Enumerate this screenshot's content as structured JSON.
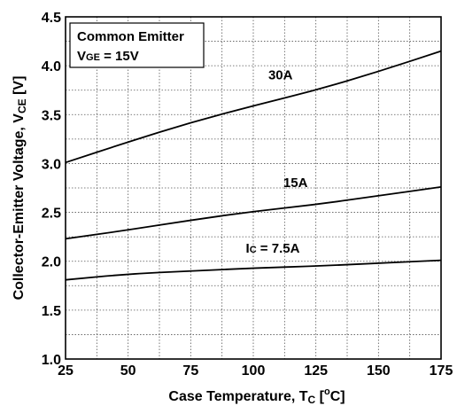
{
  "chart_data": {
    "type": "line",
    "xlabel_main": "Case Temperature, T",
    "xlabel_sub": "C",
    "xlabel_tail_pre": " [",
    "xlabel_sup": "o",
    "xlabel_tail_post": "C]",
    "ylabel_main": "Collector-Emitter Voltage, V",
    "ylabel_sub": "CE",
    "ylabel_tail": " [V]",
    "xlim": [
      25,
      175
    ],
    "ylim": [
      1.0,
      4.5
    ],
    "x_ticks": [
      25,
      50,
      75,
      100,
      125,
      150,
      175
    ],
    "x_tick_labels": [
      "25",
      "50",
      "75",
      "100",
      "125",
      "150",
      "175"
    ],
    "y_ticks": [
      1.0,
      1.5,
      2.0,
      2.5,
      3.0,
      3.5,
      4.0,
      4.5
    ],
    "y_tick_labels": [
      "1.0",
      "1.5",
      "2.0",
      "2.5",
      "3.0",
      "3.5",
      "4.0",
      "4.5"
    ],
    "grid": true,
    "legend": {
      "line1": "Common Emitter",
      "line2_main": "V",
      "line2_sub": "GE",
      "line2_tail": " = 15V",
      "placement": "top-left"
    },
    "series": [
      {
        "x": [
          25,
          50,
          75,
          100,
          125,
          150,
          175
        ],
        "y": [
          3.01,
          3.22,
          3.42,
          3.59,
          3.75,
          3.94,
          4.15
        ]
      },
      {
        "x": [
          25,
          50,
          75,
          100,
          125,
          150,
          175
        ],
        "y": [
          2.23,
          2.32,
          2.42,
          2.51,
          2.58,
          2.67,
          2.76
        ]
      },
      {
        "x": [
          25,
          50,
          75,
          100,
          125,
          150,
          175
        ],
        "y": [
          1.81,
          1.87,
          1.9,
          1.93,
          1.95,
          1.98,
          2.01
        ]
      }
    ],
    "annotations": [
      {
        "text_main": "30A",
        "x": 106,
        "y": 3.86
      },
      {
        "text_main": "15A",
        "x": 112,
        "y": 2.76
      },
      {
        "text_main": "I",
        "text_sub": "C",
        "text_tail": " = 7.5A",
        "x": 97,
        "y": 2.09
      }
    ]
  }
}
